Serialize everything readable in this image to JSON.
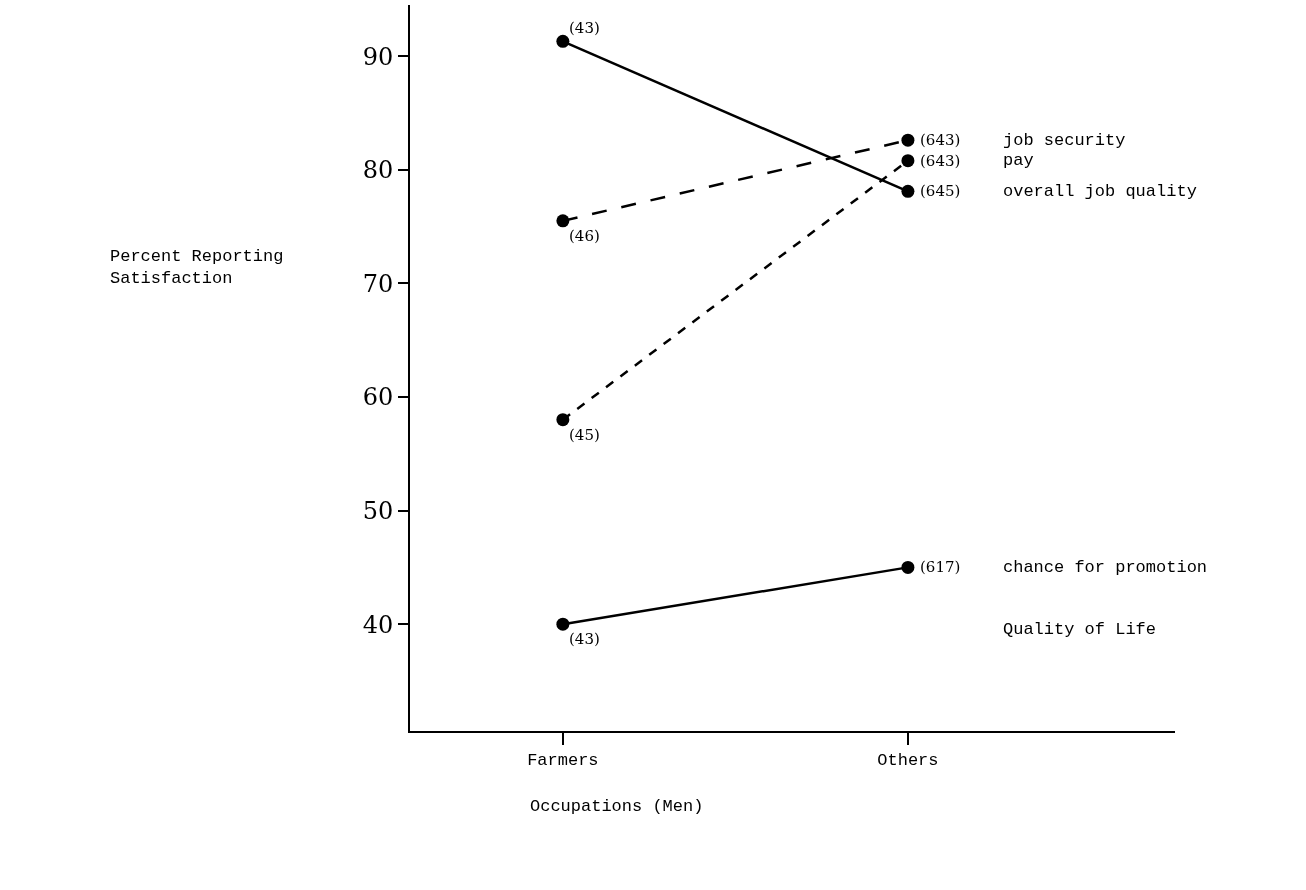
{
  "chart_data": {
    "type": "line",
    "xlabel": "Occupations (Men)",
    "ylabel": "Percent Reporting Satisfaction",
    "categories": [
      "Farmers",
      "Others"
    ],
    "series": [
      {
        "name": "job security",
        "color": "#000000",
        "values": [
          75.5,
          82.6
        ],
        "line_style": "dashed"
      },
      {
        "name": "pay",
        "color": "#000000",
        "values": [
          58.0,
          80.8
        ],
        "line_style": "dotted"
      },
      {
        "name": "overall job quality",
        "color": "#000000",
        "values": [
          91.3,
          78.1
        ],
        "line_style": "solid"
      },
      {
        "name": "chance for promotion",
        "color": "#000000",
        "values": [
          40.0,
          45.0
        ],
        "line_style": "solid"
      }
    ],
    "annotations": [
      {
        "text": "(46)",
        "x": "Farmers",
        "y": 75.5
      },
      {
        "text": "(643)",
        "x": "Others",
        "y": 82.6
      },
      {
        "text": "(45)",
        "x": "Farmers",
        "y": 58.0
      },
      {
        "text": "(643)",
        "x": "Others",
        "y": 80.8
      },
      {
        "text": "(43)",
        "x": "Farmers",
        "y": 91.3
      },
      {
        "text": "(645)",
        "x": "Others",
        "y": 78.1
      },
      {
        "text": "(43)",
        "x": "Farmers",
        "y": 40.0
      },
      {
        "text": "(617)",
        "x": "Others",
        "y": 45.0
      },
      "Quality of Life"
    ],
    "ylim": [
      30.6,
      94.5
    ],
    "yticks": [
      40,
      50,
      60,
      70,
      80,
      90
    ],
    "grid": false,
    "legend": false,
    "marker": "circle"
  }
}
